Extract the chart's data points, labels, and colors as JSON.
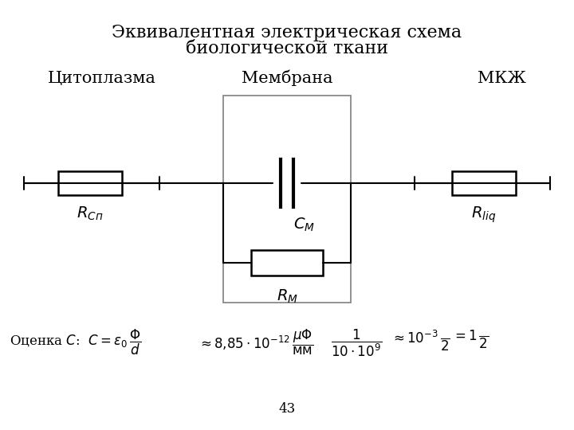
{
  "title_line1": "Эквивалентная электрическая схема",
  "title_line2": "биологической ткани",
  "label_membrane": "Мембрана",
  "label_cytoplasm": "Цитоплазма",
  "label_mkzh": "МКЖ",
  "label_cm": "$C_{M}$",
  "label_rm": "$R_{M}$",
  "label_rcyt": "$R_{Cп}$",
  "label_rliq": "$R_{liq}$",
  "formula_text": "Оценка $C$:  $C = \\varepsilon_0 \\dfrac{\\Phi}{d} \\approx 8{,}85 \\cdot 10^{-12} \\dfrac{\\mu\\Phi}{\\text{мм}} \\cdot \\dfrac{1}{10 \\cdot 10^{9}} \\approx 10^{-3} \\dfrac{\\,}{2} = 1\\dfrac{\\,}{2}$",
  "page_number": "43",
  "bg_color": "#ffffff",
  "fg_color": "#000000",
  "gray_color": "#808080",
  "title_fontsize": 16,
  "label_fontsize": 15,
  "component_fontsize": 14,
  "formula_fontsize": 13
}
